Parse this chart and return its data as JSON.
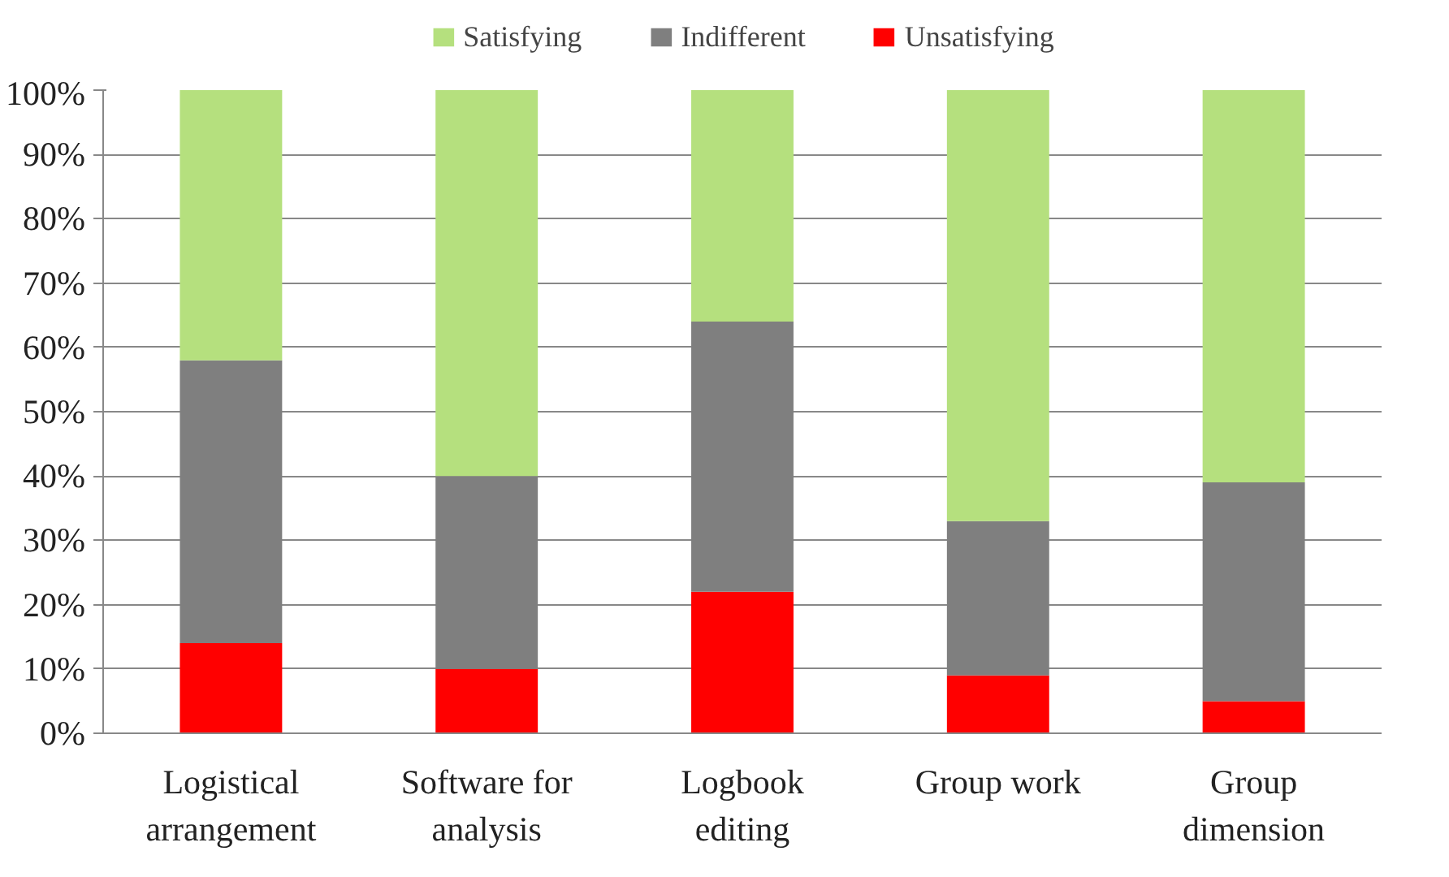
{
  "chart_data": {
    "type": "bar",
    "stacked": true,
    "categories": [
      "Logistical\narrangement",
      "Software for\nanalysis",
      "Logbook\nediting",
      "Group work",
      "Group\ndimension"
    ],
    "series": [
      {
        "name": "Unsatisfying",
        "color": "#ff0000",
        "values": [
          14,
          10,
          22,
          9,
          5
        ]
      },
      {
        "name": "Indifferent",
        "color": "#7f7f7f",
        "values": [
          44,
          30,
          42,
          24,
          34
        ]
      },
      {
        "name": "Satisfying",
        "color": "#b5e07e",
        "values": [
          42,
          60,
          36,
          67,
          61
        ]
      }
    ],
    "ylim": [
      0,
      100
    ],
    "yticks": [
      {
        "value": 0,
        "label": "0%"
      },
      {
        "value": 10,
        "label": "10%"
      },
      {
        "value": 20,
        "label": "20%"
      },
      {
        "value": 30,
        "label": "30%"
      },
      {
        "value": 40,
        "label": "40%"
      },
      {
        "value": 50,
        "label": "50%"
      },
      {
        "value": 60,
        "label": "60%"
      },
      {
        "value": 70,
        "label": "70%"
      },
      {
        "value": 80,
        "label": "80%"
      },
      {
        "value": 90,
        "label": "90%"
      },
      {
        "value": 100,
        "label": "100%"
      }
    ],
    "grid": "y",
    "legend": "top"
  }
}
